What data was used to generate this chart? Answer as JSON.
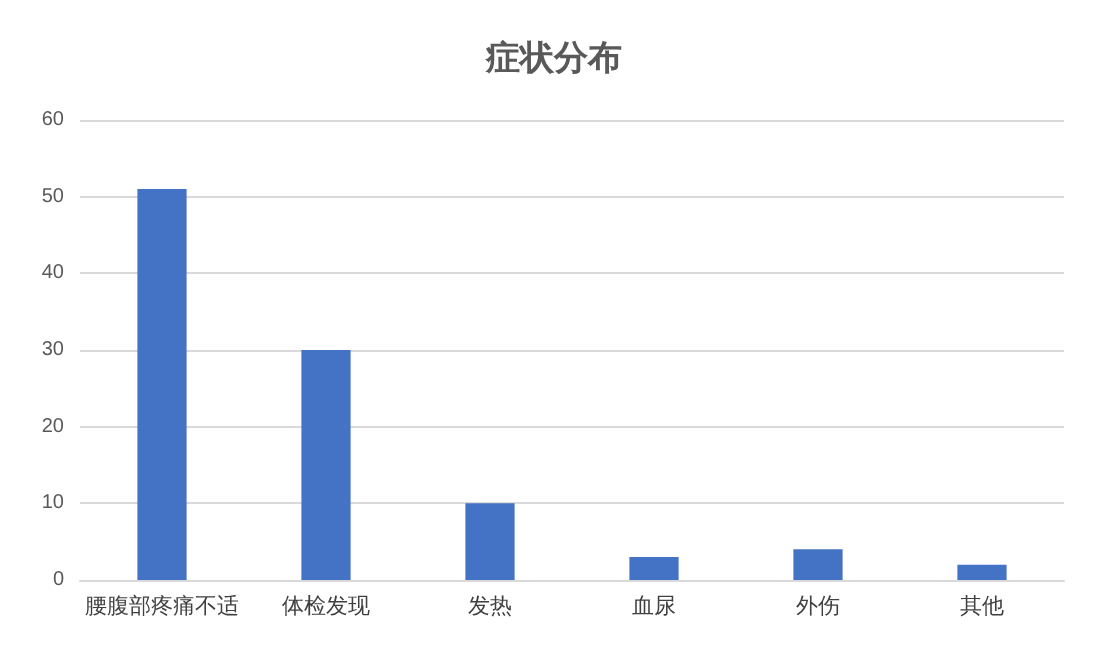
{
  "chart_data": {
    "type": "bar",
    "title": "症状分布",
    "categories": [
      "腰腹部疼痛不适",
      "体检发现",
      "发热",
      "血尿",
      "外伤",
      "其他"
    ],
    "values": [
      51,
      30,
      10,
      3,
      4,
      2
    ],
    "color": "#4472c4",
    "ylim": [
      0,
      60
    ],
    "yticks": [
      0,
      10,
      20,
      30,
      40,
      50,
      60
    ],
    "grid": "y"
  }
}
